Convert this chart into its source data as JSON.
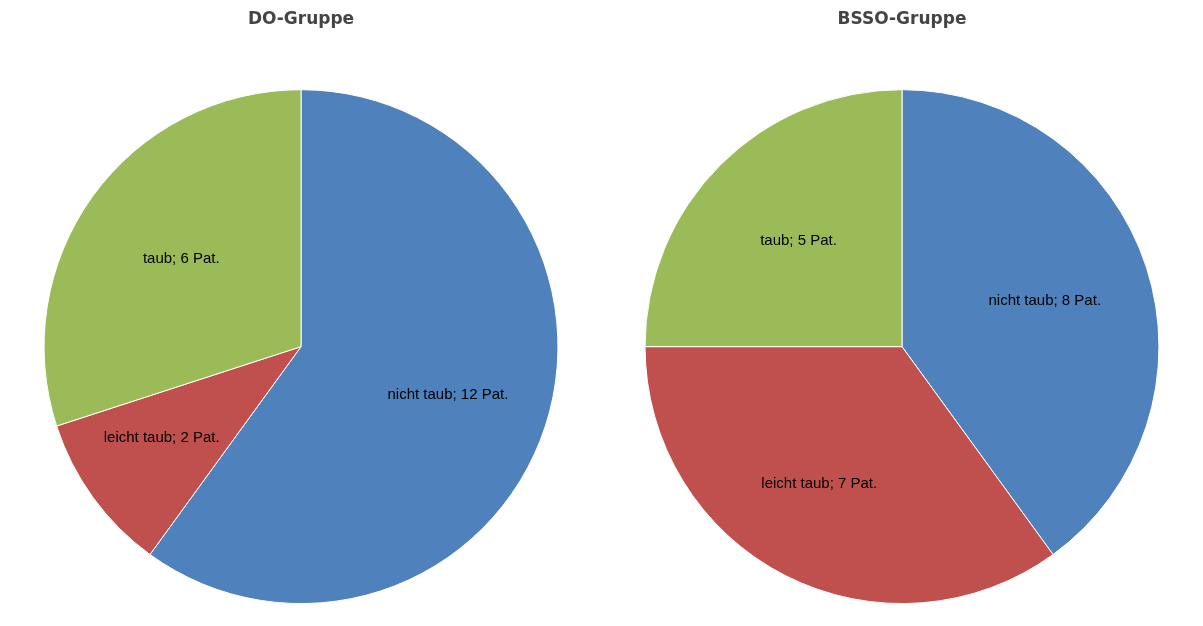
{
  "chart_data": [
    {
      "type": "pie",
      "title": "DO-Gruppe",
      "categories": [
        "nicht taub",
        "leicht taub",
        "taub"
      ],
      "values": [
        12,
        2,
        6
      ],
      "colors": [
        "#4f81bd",
        "#c0504d",
        "#9bbb59"
      ],
      "value_labels": [
        "; 12 Pat.",
        "; 2 Pat.",
        "; 6 Pat."
      ]
    },
    {
      "type": "pie",
      "title": "BSSO-Gruppe",
      "categories": [
        "nicht taub",
        "leicht taub",
        "taub"
      ],
      "values": [
        8,
        7,
        5
      ],
      "colors": [
        "#4f81bd",
        "#c0504d",
        "#9bbb59"
      ],
      "value_labels": [
        "; 8 Pat.",
        "; 7 Pat.",
        "; 5 Pat."
      ]
    }
  ]
}
